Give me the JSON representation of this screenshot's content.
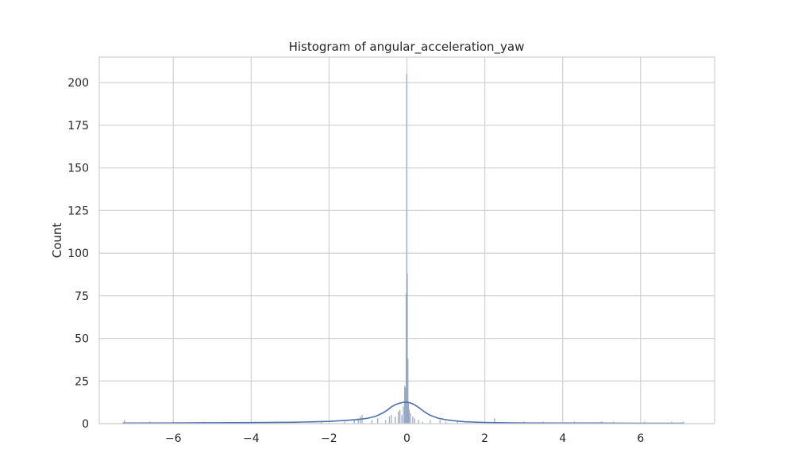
{
  "chart_data": {
    "type": "bar",
    "title": "Histogram of angular_acceleration_yaw",
    "xlabel": "",
    "ylabel": "Count",
    "xlim": [
      -7.9,
      7.9
    ],
    "ylim": [
      0,
      215
    ],
    "grid": true,
    "x_ticks": [
      -6,
      -4,
      -2,
      0,
      2,
      4,
      6
    ],
    "x_tick_labels": [
      "−6",
      "−4",
      "−2",
      "0",
      "2",
      "4",
      "6"
    ],
    "y_ticks": [
      0,
      25,
      50,
      75,
      100,
      125,
      150,
      175,
      200
    ],
    "y_tick_labels": [
      "0",
      "25",
      "50",
      "75",
      "100",
      "125",
      "150",
      "175",
      "200"
    ],
    "bin_width": 0.015,
    "bins": [
      {
        "x": -7.25,
        "count": 2
      },
      {
        "x": -6.6,
        "count": 1
      },
      {
        "x": -6.0,
        "count": 1
      },
      {
        "x": -5.2,
        "count": 1
      },
      {
        "x": -3.9,
        "count": 1
      },
      {
        "x": -2.9,
        "count": 1
      },
      {
        "x": -2.2,
        "count": 1
      },
      {
        "x": -1.6,
        "count": 1
      },
      {
        "x": -1.35,
        "count": 2
      },
      {
        "x": -1.25,
        "count": 3
      },
      {
        "x": -1.2,
        "count": 4
      },
      {
        "x": -1.15,
        "count": 5
      },
      {
        "x": -0.9,
        "count": 2
      },
      {
        "x": -0.75,
        "count": 3
      },
      {
        "x": -0.55,
        "count": 2
      },
      {
        "x": -0.45,
        "count": 4
      },
      {
        "x": -0.4,
        "count": 5
      },
      {
        "x": -0.3,
        "count": 4
      },
      {
        "x": -0.22,
        "count": 7
      },
      {
        "x": -0.18,
        "count": 8
      },
      {
        "x": -0.13,
        "count": 5
      },
      {
        "x": -0.09,
        "count": 10
      },
      {
        "x": -0.06,
        "count": 22
      },
      {
        "x": -0.04,
        "count": 21
      },
      {
        "x": -0.02,
        "count": 76
      },
      {
        "x": -0.005,
        "count": 205
      },
      {
        "x": 0.01,
        "count": 88
      },
      {
        "x": 0.025,
        "count": 38
      },
      {
        "x": 0.04,
        "count": 12
      },
      {
        "x": 0.06,
        "count": 8
      },
      {
        "x": 0.09,
        "count": 6
      },
      {
        "x": 0.15,
        "count": 4
      },
      {
        "x": 0.2,
        "count": 3
      },
      {
        "x": 0.3,
        "count": 2
      },
      {
        "x": 0.4,
        "count": 1
      },
      {
        "x": 0.6,
        "count": 2
      },
      {
        "x": 0.85,
        "count": 2
      },
      {
        "x": 1.0,
        "count": 1
      },
      {
        "x": 1.3,
        "count": 1
      },
      {
        "x": 1.8,
        "count": 1
      },
      {
        "x": 2.25,
        "count": 3
      },
      {
        "x": 3.0,
        "count": 1
      },
      {
        "x": 3.5,
        "count": 1
      },
      {
        "x": 4.3,
        "count": 1
      },
      {
        "x": 5.0,
        "count": 1
      },
      {
        "x": 5.3,
        "count": 1
      },
      {
        "x": 6.1,
        "count": 1
      },
      {
        "x": 6.8,
        "count": 1
      },
      {
        "x": 7.1,
        "count": 1
      }
    ],
    "kde": {
      "x": [
        -7.3,
        -6,
        -5,
        -4,
        -3,
        -2.5,
        -2,
        -1.5,
        -1.2,
        -1,
        -0.8,
        -0.6,
        -0.5,
        -0.4,
        -0.3,
        -0.2,
        -0.1,
        0,
        0.1,
        0.2,
        0.3,
        0.4,
        0.5,
        0.6,
        0.8,
        1,
        1.2,
        1.5,
        2,
        2.5,
        3,
        4,
        5,
        6,
        7.1
      ],
      "y": [
        0.3,
        0.4,
        0.5,
        0.6,
        0.8,
        1.0,
        1.3,
        2.0,
        2.6,
        3.2,
        4.3,
        6.5,
        8.0,
        9.8,
        11.1,
        11.9,
        12.5,
        12.6,
        12.1,
        11.0,
        9.5,
        7.8,
        6.2,
        4.9,
        3.2,
        2.3,
        1.7,
        1.1,
        0.7,
        0.5,
        0.4,
        0.3,
        0.3,
        0.2,
        0.2
      ]
    },
    "colors": {
      "bar_fill": "#a3b5d0",
      "bar_edge": "#8c9fbf",
      "kde_line": "#4c72b0",
      "grid": "#d0d0d0",
      "frame": "#cfcfcf"
    }
  }
}
